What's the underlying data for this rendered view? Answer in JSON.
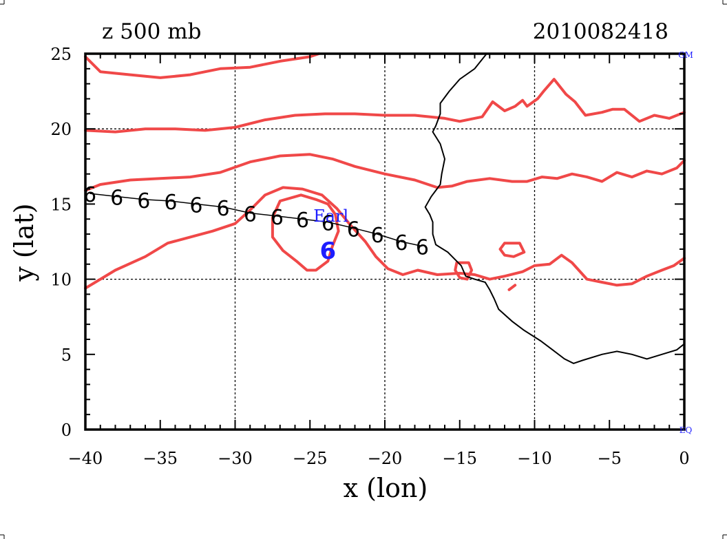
{
  "chart_data": {
    "type": "map",
    "title_left": "z 500 mb",
    "title_right": "2010082418",
    "xlabel": "x (lon)",
    "ylabel": "y (lat)",
    "xlim": [
      -40,
      0
    ],
    "ylim": [
      0,
      25
    ],
    "x_ticks": [
      -40,
      -35,
      -30,
      -25,
      -20,
      -15,
      -10,
      -5,
      0
    ],
    "x_tick_labels": [
      "−40",
      "−35",
      "−30",
      "−25",
      "−20",
      "−15",
      "−10",
      "−5",
      "0"
    ],
    "y_ticks": [
      0,
      5,
      10,
      15,
      20,
      25
    ],
    "y_tick_labels": [
      "0",
      "5",
      "10",
      "15",
      "20",
      "25"
    ],
    "grid_x": [
      -30,
      -20,
      -10
    ],
    "grid_y": [
      10,
      20
    ],
    "corner_labels": {
      "top_right": "GM",
      "bottom_right": "EQ"
    },
    "storm": {
      "name": "Earl",
      "name_anchor": [
        -23.6,
        14.2
      ],
      "current_position": [
        -23.8,
        12.0
      ],
      "track": [
        [
          -39.7,
          15.7
        ],
        [
          -37.9,
          15.5
        ],
        [
          -36.1,
          15.3
        ],
        [
          -34.3,
          15.2
        ],
        [
          -32.6,
          15.0
        ],
        [
          -30.8,
          14.8
        ],
        [
          -29.0,
          14.4
        ],
        [
          -27.2,
          14.2
        ],
        [
          -25.5,
          14.0
        ],
        [
          -23.8,
          13.8
        ],
        [
          -22.1,
          13.4
        ],
        [
          -20.5,
          13.0
        ],
        [
          -18.9,
          12.5
        ],
        [
          -17.5,
          12.2
        ]
      ]
    },
    "contours_color": "#f04848",
    "contours": [
      [
        [
          -40,
          24.8
        ],
        [
          -39,
          23.8
        ],
        [
          -37,
          23.6
        ],
        [
          -35,
          23.4
        ],
        [
          -33,
          23.6
        ],
        [
          -31,
          24.0
        ],
        [
          -29,
          24.1
        ],
        [
          -27,
          24.5
        ],
        [
          -25,
          24.8
        ],
        [
          -24.4,
          25.0
        ]
      ],
      [
        [
          -40,
          19.9
        ],
        [
          -38,
          19.8
        ],
        [
          -36,
          20.0
        ],
        [
          -34,
          20.0
        ],
        [
          -32,
          19.9
        ],
        [
          -30,
          20.1
        ],
        [
          -28,
          20.6
        ],
        [
          -26,
          20.9
        ],
        [
          -24,
          21.0
        ],
        [
          -22,
          21.0
        ],
        [
          -20,
          20.9
        ],
        [
          -18,
          20.9
        ],
        [
          -16,
          20.7
        ],
        [
          -15,
          20.5
        ],
        [
          -13.5,
          20.8
        ],
        [
          -12.8,
          21.8
        ],
        [
          -12,
          21.2
        ],
        [
          -11.3,
          21.5
        ],
        [
          -10.8,
          21.9
        ],
        [
          -10.5,
          21.5
        ],
        [
          -9.8,
          22.0
        ],
        [
          -9.4,
          22.5
        ],
        [
          -8.7,
          23.3
        ],
        [
          -7.9,
          22.3
        ],
        [
          -7.3,
          21.8
        ],
        [
          -6.6,
          20.9
        ],
        [
          -5.5,
          21.1
        ],
        [
          -4.8,
          21.3
        ],
        [
          -4.0,
          21.3
        ],
        [
          -3.0,
          20.5
        ],
        [
          -2.0,
          20.9
        ],
        [
          -1.0,
          20.7
        ],
        [
          0,
          21.1
        ]
      ],
      [
        [
          -40,
          15.9
        ],
        [
          -39,
          16.3
        ],
        [
          -37,
          16.6
        ],
        [
          -35,
          16.7
        ],
        [
          -33,
          16.8
        ],
        [
          -31,
          17.1
        ],
        [
          -29,
          17.8
        ],
        [
          -27,
          18.2
        ],
        [
          -25,
          18.3
        ],
        [
          -23.5,
          18.0
        ],
        [
          -22,
          17.5
        ],
        [
          -20,
          17.0
        ],
        [
          -18,
          16.6
        ],
        [
          -16.5,
          16.1
        ],
        [
          -15.5,
          16.2
        ],
        [
          -14.5,
          16.5
        ],
        [
          -13,
          16.7
        ],
        [
          -11.5,
          16.5
        ],
        [
          -10.5,
          16.5
        ],
        [
          -9.5,
          16.8
        ],
        [
          -8.5,
          16.7
        ],
        [
          -7.5,
          17.0
        ],
        [
          -6.5,
          16.8
        ],
        [
          -5.5,
          16.5
        ],
        [
          -4.5,
          17.1
        ],
        [
          -3.5,
          16.8
        ],
        [
          -2.5,
          17.2
        ],
        [
          -1.5,
          17.0
        ],
        [
          -0.5,
          17.4
        ],
        [
          0,
          17.9
        ]
      ],
      [
        [
          -40,
          9.4
        ],
        [
          -39,
          10.0
        ],
        [
          -38,
          10.6
        ],
        [
          -36,
          11.5
        ],
        [
          -34.5,
          12.4
        ],
        [
          -33,
          12.8
        ],
        [
          -31.5,
          13.2
        ],
        [
          -30,
          13.7
        ],
        [
          -29,
          14.6
        ],
        [
          -28,
          15.6
        ],
        [
          -26.8,
          16.1
        ],
        [
          -25.5,
          16.0
        ],
        [
          -24.2,
          15.6
        ],
        [
          -23.2,
          14.7
        ],
        [
          -22.3,
          13.6
        ],
        [
          -21.3,
          12.5
        ],
        [
          -20.6,
          11.5
        ],
        [
          -19.8,
          10.7
        ],
        [
          -18.8,
          10.3
        ],
        [
          -17.8,
          10.6
        ],
        [
          -16.5,
          10.3
        ],
        [
          -15.0,
          10.4
        ],
        [
          -14.0,
          10.3
        ],
        [
          -13.0,
          10.0
        ],
        [
          -12.0,
          10.2
        ],
        [
          -10.8,
          10.5
        ],
        [
          -10.0,
          10.9
        ],
        [
          -9.0,
          11.0
        ],
        [
          -8.2,
          11.6
        ],
        [
          -7.5,
          11.1
        ],
        [
          -6.5,
          10.0
        ],
        [
          -5.5,
          9.8
        ],
        [
          -4.5,
          9.6
        ],
        [
          -3.5,
          9.7
        ],
        [
          -2.5,
          10.2
        ],
        [
          -1.5,
          10.6
        ],
        [
          -0.7,
          10.9
        ],
        [
          0,
          11.4
        ]
      ],
      [
        [
          -24.6,
          15.3
        ],
        [
          -25.6,
          15.6
        ],
        [
          -27.0,
          15.2
        ],
        [
          -27.5,
          14.1
        ],
        [
          -27.5,
          12.8
        ],
        [
          -26.8,
          11.9
        ],
        [
          -25.9,
          11.2
        ],
        [
          -25.2,
          10.6
        ],
        [
          -24.6,
          10.6
        ],
        [
          -23.8,
          11.2
        ],
        [
          -23.5,
          12.2
        ],
        [
          -23.1,
          13.2
        ],
        [
          -23.3,
          14.3
        ],
        [
          -23.8,
          15.0
        ],
        [
          -24.6,
          15.3
        ]
      ],
      [
        [
          -15.2,
          11.1
        ],
        [
          -14.4,
          11.1
        ],
        [
          -14.2,
          10.6
        ],
        [
          -14.5,
          10.0
        ],
        [
          -15.0,
          10.1
        ],
        [
          -15.3,
          10.6
        ],
        [
          -15.2,
          11.1
        ]
      ],
      [
        [
          -12.0,
          12.4
        ],
        [
          -11.0,
          12.4
        ],
        [
          -10.7,
          11.8
        ],
        [
          -11.4,
          11.5
        ],
        [
          -12.0,
          11.6
        ],
        [
          -12.3,
          12.0
        ],
        [
          -12.0,
          12.4
        ]
      ],
      [
        [
          -11.7,
          9.3
        ],
        [
          -11.3,
          9.6
        ]
      ]
    ],
    "coastline": [
      [
        -13.2,
        25.0
      ],
      [
        -14.0,
        24.0
      ],
      [
        -15.0,
        23.3
      ],
      [
        -15.7,
        22.5
      ],
      [
        -16.3,
        21.7
      ],
      [
        -16.3,
        21.0
      ],
      [
        -16.6,
        20.2
      ],
      [
        -16.8,
        19.8
      ],
      [
        -16.3,
        19.0
      ],
      [
        -16.0,
        18.0
      ],
      [
        -16.2,
        17.0
      ],
      [
        -16.3,
        16.3
      ],
      [
        -16.9,
        15.5
      ],
      [
        -17.3,
        14.8
      ],
      [
        -17.0,
        14.3
      ],
      [
        -16.8,
        13.8
      ],
      [
        -16.8,
        13.0
      ],
      [
        -16.6,
        12.3
      ],
      [
        -15.8,
        11.8
      ],
      [
        -15.3,
        11.3
      ],
      [
        -14.9,
        10.9
      ],
      [
        -14.6,
        10.2
      ],
      [
        -14.0,
        10.0
      ],
      [
        -13.3,
        9.8
      ],
      [
        -13.0,
        9.3
      ],
      [
        -12.7,
        8.7
      ],
      [
        -12.4,
        8.0
      ],
      [
        -11.5,
        7.2
      ],
      [
        -10.7,
        6.6
      ],
      [
        -9.6,
        5.9
      ],
      [
        -8.8,
        5.3
      ],
      [
        -8.0,
        4.7
      ],
      [
        -7.4,
        4.4
      ],
      [
        -6.8,
        4.6
      ],
      [
        -5.5,
        5.0
      ],
      [
        -4.5,
        5.2
      ],
      [
        -3.5,
        5.0
      ],
      [
        -2.5,
        4.7
      ],
      [
        -1.5,
        5.0
      ],
      [
        -0.5,
        5.3
      ],
      [
        0,
        5.7
      ]
    ]
  }
}
